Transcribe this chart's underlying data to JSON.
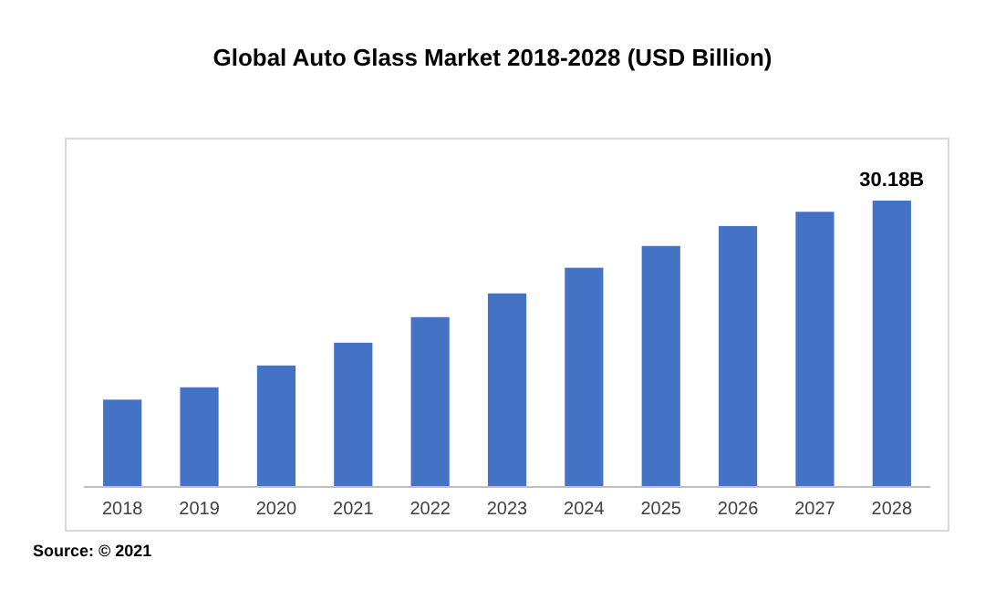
{
  "chart_data": {
    "type": "bar",
    "title": "Global Auto Glass Market 2018-2028 (USD Billion)",
    "categories": [
      "2018",
      "2019",
      "2020",
      "2021",
      "2022",
      "2023",
      "2024",
      "2025",
      "2026",
      "2027",
      "2028"
    ],
    "values": [
      9.2,
      10.5,
      12.8,
      15.2,
      17.9,
      20.4,
      23.1,
      25.4,
      27.5,
      29.0,
      30.18
    ],
    "value_labels": [
      null,
      null,
      null,
      null,
      null,
      null,
      null,
      null,
      null,
      null,
      "30.18B"
    ],
    "color": "#4472c4",
    "tick_labels": "x",
    "annotations": [
      "Source: © 2021"
    ]
  }
}
